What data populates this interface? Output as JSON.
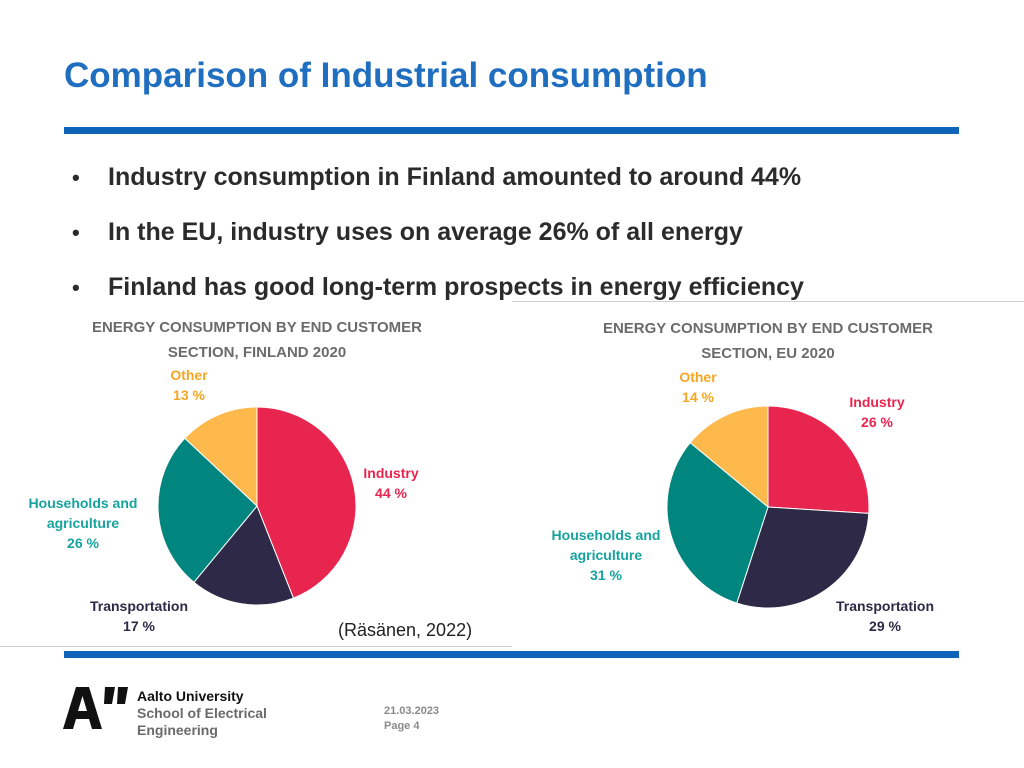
{
  "slide": {
    "title": "Comparison of Industrial consumption",
    "bullet_marker": "•",
    "bullets": [
      "Industry consumption in Finland amounted to around 44%",
      "In the EU, industry uses on average 26% of all energy",
      "Finland has good long-term prospects in energy efficiency"
    ],
    "citation": "(Räsänen, 2022)",
    "accent_color": "#1f6ebf"
  },
  "chart_data": [
    {
      "type": "pie",
      "title_lines": [
        "ENERGY CONSUMPTION BY END CUSTOMER",
        "SECTION, FINLAND 2020"
      ],
      "slices": [
        {
          "label": "Industry",
          "value_label": "44 %",
          "value": 44,
          "color": "#e8254e",
          "label_color": "#e8254e"
        },
        {
          "label": "Transportation",
          "value_label": "17 %",
          "value": 17,
          "color": "#2d2947",
          "label_color": "#2d2947"
        },
        {
          "label": "Households and agriculture",
          "value_label": "26 %",
          "value": 26,
          "color": "#00857f",
          "label_color": "#16a3a0"
        },
        {
          "label": "Other",
          "value_label": "13 %",
          "value": 13,
          "color": "#fdb94b",
          "label_color": "#f5a623"
        }
      ]
    },
    {
      "type": "pie",
      "title_lines": [
        "ENERGY CONSUMPTION BY END CUSTOMER",
        "SECTION, EU 2020"
      ],
      "slices": [
        {
          "label": "Industry",
          "value_label": "26 %",
          "value": 26,
          "color": "#e8254e",
          "label_color": "#e8254e"
        },
        {
          "label": "Transportation",
          "value_label": "29 %",
          "value": 29,
          "color": "#2d2947",
          "label_color": "#2d2947"
        },
        {
          "label": "Households and agriculture",
          "value_label": "31 %",
          "value": 31,
          "color": "#00857f",
          "label_color": "#16a3a0"
        },
        {
          "label": "Other",
          "value_label": "14 %",
          "value": 14,
          "color": "#fdb94b",
          "label_color": "#f5a623"
        }
      ]
    }
  ],
  "footer": {
    "logo_text": "A”",
    "university": "Aalto University",
    "school_line1": "School of Electrical",
    "school_line2": "Engineering",
    "date": "21.03.2023",
    "page": "Page 4"
  }
}
